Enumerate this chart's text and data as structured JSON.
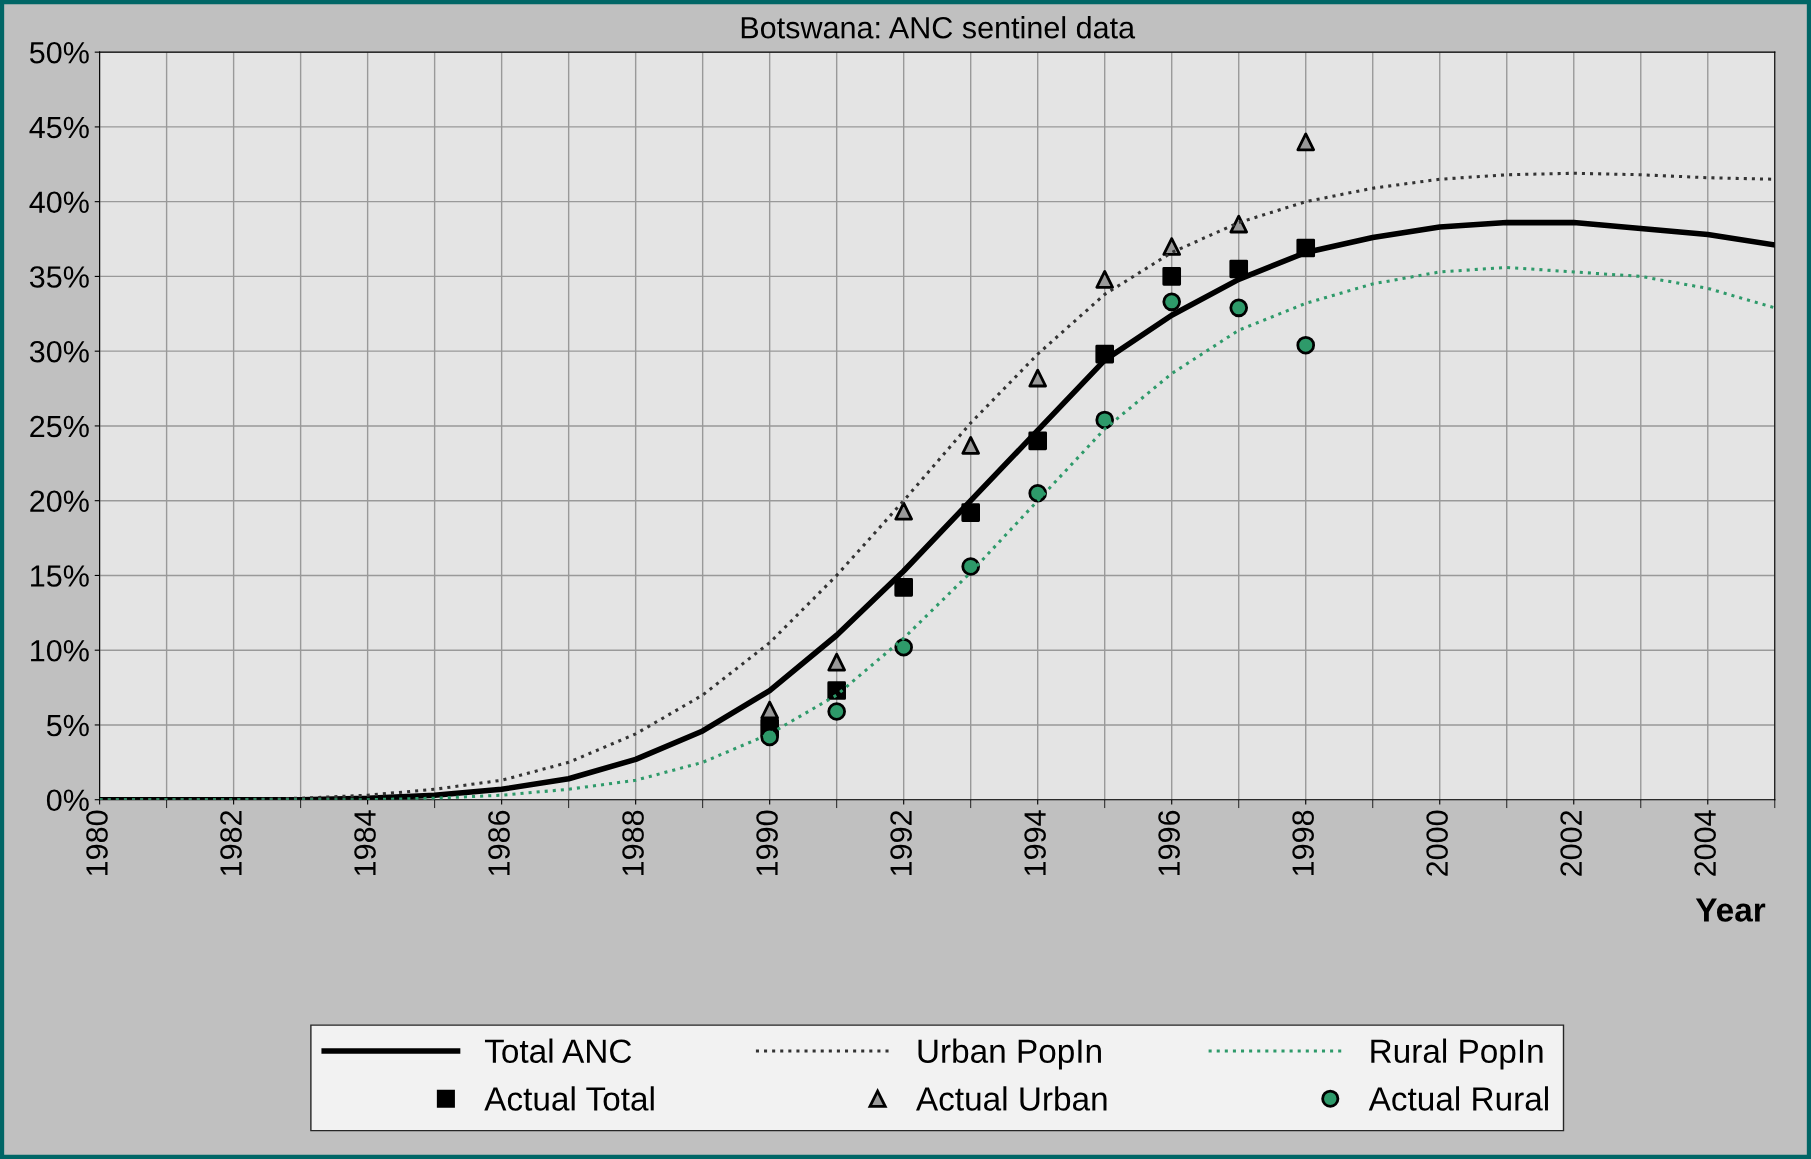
{
  "chart_data": {
    "type": "line",
    "title": "Botswana: ANC sentinel data",
    "xlabel": "Year",
    "x": [
      1980,
      1981,
      1982,
      1983,
      1984,
      1985,
      1986,
      1987,
      1988,
      1989,
      1990,
      1991,
      1992,
      1993,
      1994,
      1995,
      1996,
      1997,
      1998,
      1999,
      2000,
      2001,
      2002,
      2003,
      2004,
      2005
    ],
    "series": [
      {
        "name": "Total ANC",
        "color": "#000000",
        "line_style": "solid",
        "marker": "none",
        "values": [
          0,
          0,
          0,
          0,
          0.1,
          0.3,
          0.7,
          1.4,
          2.7,
          4.6,
          7.3,
          11.0,
          15.3,
          20.0,
          24.7,
          29.4,
          32.4,
          34.8,
          36.6,
          37.6,
          38.3,
          38.6,
          38.6,
          38.2,
          37.8,
          37.1
        ]
      },
      {
        "name": "Urban PopIn",
        "color": "#333333",
        "line_style": "dotted",
        "marker": "none",
        "values": [
          0,
          0,
          0,
          0.1,
          0.3,
          0.7,
          1.3,
          2.5,
          4.4,
          7.0,
          10.5,
          15.0,
          20.0,
          25.2,
          29.8,
          33.8,
          36.6,
          38.6,
          40.0,
          40.9,
          41.5,
          41.8,
          41.9,
          41.8,
          41.6,
          41.5
        ]
      },
      {
        "name": "Rural PopIn",
        "color": "#2e9a6a",
        "line_style": "dotted",
        "marker": "none",
        "values": [
          0,
          0,
          0,
          0,
          0,
          0.1,
          0.3,
          0.7,
          1.3,
          2.5,
          4.4,
          7.0,
          10.8,
          15.2,
          20.0,
          24.8,
          28.5,
          31.4,
          33.2,
          34.5,
          35.3,
          35.6,
          35.3,
          35.0,
          34.2,
          32.9
        ]
      },
      {
        "name": "Actual Total",
        "type": "scatter",
        "color": "#000000",
        "marker": "square",
        "x": [
          1990,
          1991,
          1992,
          1993,
          1994,
          1995,
          1996,
          1997,
          1998
        ],
        "values": [
          4.8,
          7.3,
          14.2,
          19.2,
          24.0,
          29.8,
          35.0,
          35.5,
          36.9
        ]
      },
      {
        "name": "Actual Urban",
        "type": "scatter",
        "color": "#999999",
        "marker": "triangle",
        "x": [
          1990,
          1991,
          1992,
          1993,
          1994,
          1995,
          1996,
          1997,
          1998
        ],
        "values": [
          6.0,
          9.2,
          19.3,
          23.7,
          28.2,
          34.8,
          37.0,
          38.5,
          44.0
        ]
      },
      {
        "name": "Actual Rural",
        "type": "scatter",
        "color": "#2e9a6a",
        "marker": "circle",
        "x": [
          1990,
          1991,
          1992,
          1993,
          1994,
          1995,
          1996,
          1997,
          1998
        ],
        "values": [
          4.2,
          5.9,
          10.2,
          15.6,
          20.5,
          25.4,
          33.3,
          32.9,
          30.4
        ]
      }
    ],
    "xlim": [
      1980,
      2005
    ],
    "xticks": [
      1980,
      1982,
      1984,
      1986,
      1988,
      1990,
      1992,
      1994,
      1996,
      1998,
      2000,
      2002,
      2004
    ],
    "ylim": [
      0,
      50
    ],
    "yticks": [
      {
        "value": 0,
        "label": "0%"
      },
      {
        "value": 5,
        "label": "5%"
      },
      {
        "value": 10,
        "label": "10%"
      },
      {
        "value": 15,
        "label": "15%"
      },
      {
        "value": 20,
        "label": "20%"
      },
      {
        "value": 25,
        "label": "25%"
      },
      {
        "value": 30,
        "label": "30%"
      },
      {
        "value": 35,
        "label": "35%"
      },
      {
        "value": 40,
        "label": "40%"
      },
      {
        "value": 45,
        "label": "45%"
      },
      {
        "value": 50,
        "label": "50%"
      }
    ],
    "grid": true,
    "legend": "bottom"
  }
}
